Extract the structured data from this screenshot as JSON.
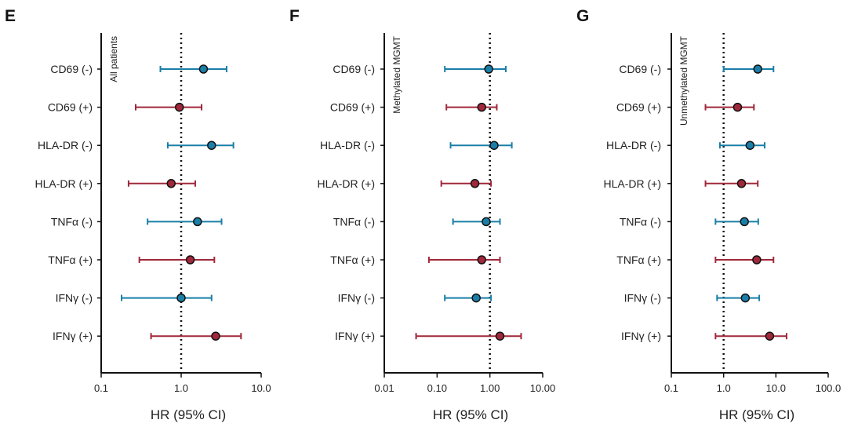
{
  "colors": {
    "negative": "#1a7fa8",
    "positive": "#a0283a",
    "axis": "#111111"
  },
  "chart_data": [
    {
      "type": "scatter",
      "panel": "E",
      "annotation": "All patients",
      "xlabel": "HR (95% CI)",
      "xscale": "log",
      "xlim": [
        0.1,
        10
      ],
      "xticks": [
        0.1,
        1,
        10
      ],
      "xtick_labels": [
        "0.1",
        "1.0",
        "10.0"
      ],
      "reference_line": 1,
      "categories": [
        "CD69 (-)",
        "CD69 (+)",
        "HLA-DR (-)",
        "HLA-DR (+)",
        "TNFα (-)",
        "TNFα (+)",
        "IFNγ (-)",
        "IFNγ (+)"
      ],
      "hr": [
        1.9,
        0.95,
        2.4,
        0.75,
        1.6,
        1.3,
        1.0,
        2.7
      ],
      "lower": [
        0.55,
        0.27,
        0.68,
        0.22,
        0.38,
        0.3,
        0.18,
        0.42
      ],
      "upper": [
        3.7,
        1.8,
        4.5,
        1.5,
        3.2,
        2.6,
        2.4,
        5.6
      ],
      "group": [
        "negative",
        "positive",
        "negative",
        "positive",
        "negative",
        "positive",
        "negative",
        "positive"
      ]
    },
    {
      "type": "scatter",
      "panel": "F",
      "annotation": "Methylated MGMT",
      "xlabel": "HR (95% CI)",
      "xscale": "log",
      "xlim": [
        0.01,
        10
      ],
      "xticks": [
        0.01,
        0.1,
        1,
        10
      ],
      "xtick_labels": [
        "0.01",
        "0.10",
        "1.00",
        "10.00"
      ],
      "reference_line": 1,
      "categories": [
        "CD69 (-)",
        "CD69 (+)",
        "HLA-DR (-)",
        "HLA-DR (+)",
        "TNFα (-)",
        "TNFα (+)",
        "IFNγ (-)",
        "IFNγ (+)"
      ],
      "hr": [
        0.95,
        0.7,
        1.2,
        0.52,
        0.85,
        0.7,
        0.55,
        1.55
      ],
      "lower": [
        0.14,
        0.15,
        0.18,
        0.12,
        0.2,
        0.07,
        0.14,
        0.04
      ],
      "upper": [
        2.0,
        1.35,
        2.6,
        1.05,
        1.55,
        1.55,
        1.05,
        3.9
      ],
      "group": [
        "negative",
        "positive",
        "negative",
        "positive",
        "negative",
        "positive",
        "negative",
        "positive"
      ]
    },
    {
      "type": "scatter",
      "panel": "G",
      "annotation": "Unmethylated MGMT",
      "xlabel": "HR (95% CI)",
      "xscale": "log",
      "xlim": [
        0.1,
        100
      ],
      "xticks": [
        0.1,
        1,
        10,
        100
      ],
      "xtick_labels": [
        "0.1",
        "1.0",
        "10.0",
        "100.0"
      ],
      "reference_line": 1,
      "categories": [
        "CD69 (-)",
        "CD69 (+)",
        "HLA-DR (-)",
        "HLA-DR (+)",
        "TNFα (-)",
        "TNFα (+)",
        "IFNγ (-)",
        "IFNγ (+)"
      ],
      "hr": [
        4.5,
        1.85,
        3.2,
        2.2,
        2.5,
        4.3,
        2.6,
        7.6
      ],
      "lower": [
        1.0,
        0.45,
        0.85,
        0.45,
        0.7,
        0.7,
        0.75,
        0.7
      ],
      "upper": [
        9.0,
        3.8,
        6.1,
        4.5,
        4.6,
        9.0,
        4.8,
        16.0
      ],
      "group": [
        "negative",
        "positive",
        "negative",
        "positive",
        "negative",
        "positive",
        "negative",
        "positive"
      ]
    }
  ]
}
